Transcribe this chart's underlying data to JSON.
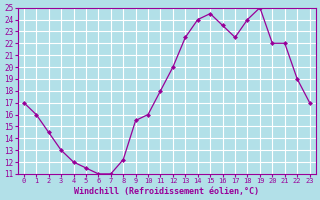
{
  "hours": [
    0,
    1,
    2,
    3,
    4,
    5,
    6,
    7,
    8,
    9,
    10,
    11,
    12,
    13,
    14,
    15,
    16,
    17,
    18,
    19,
    20,
    21,
    22,
    23
  ],
  "values": [
    17.0,
    16.0,
    14.5,
    13.0,
    12.0,
    11.5,
    11.0,
    11.0,
    12.2,
    15.5,
    16.0,
    18.0,
    20.0,
    22.5,
    24.0,
    24.5,
    23.5,
    22.5,
    24.0,
    25.0,
    22.0,
    22.0,
    19.0,
    17.0
  ],
  "line_color": "#990099",
  "marker_color": "#990099",
  "bg_color": "#b2e0e8",
  "grid_color": "#ffffff",
  "xlabel": "Windchill (Refroidissement éolien,°C)",
  "ylim": [
    11,
    25
  ],
  "xlim_min": -0.5,
  "xlim_max": 23.5,
  "yticks": [
    11,
    12,
    13,
    14,
    15,
    16,
    17,
    18,
    19,
    20,
    21,
    22,
    23,
    24,
    25
  ],
  "xticks": [
    0,
    1,
    2,
    3,
    4,
    5,
    6,
    7,
    8,
    9,
    10,
    11,
    12,
    13,
    14,
    15,
    16,
    17,
    18,
    19,
    20,
    21,
    22,
    23
  ],
  "tick_color": "#990099",
  "label_color": "#990099",
  "axis_color": "#990099"
}
